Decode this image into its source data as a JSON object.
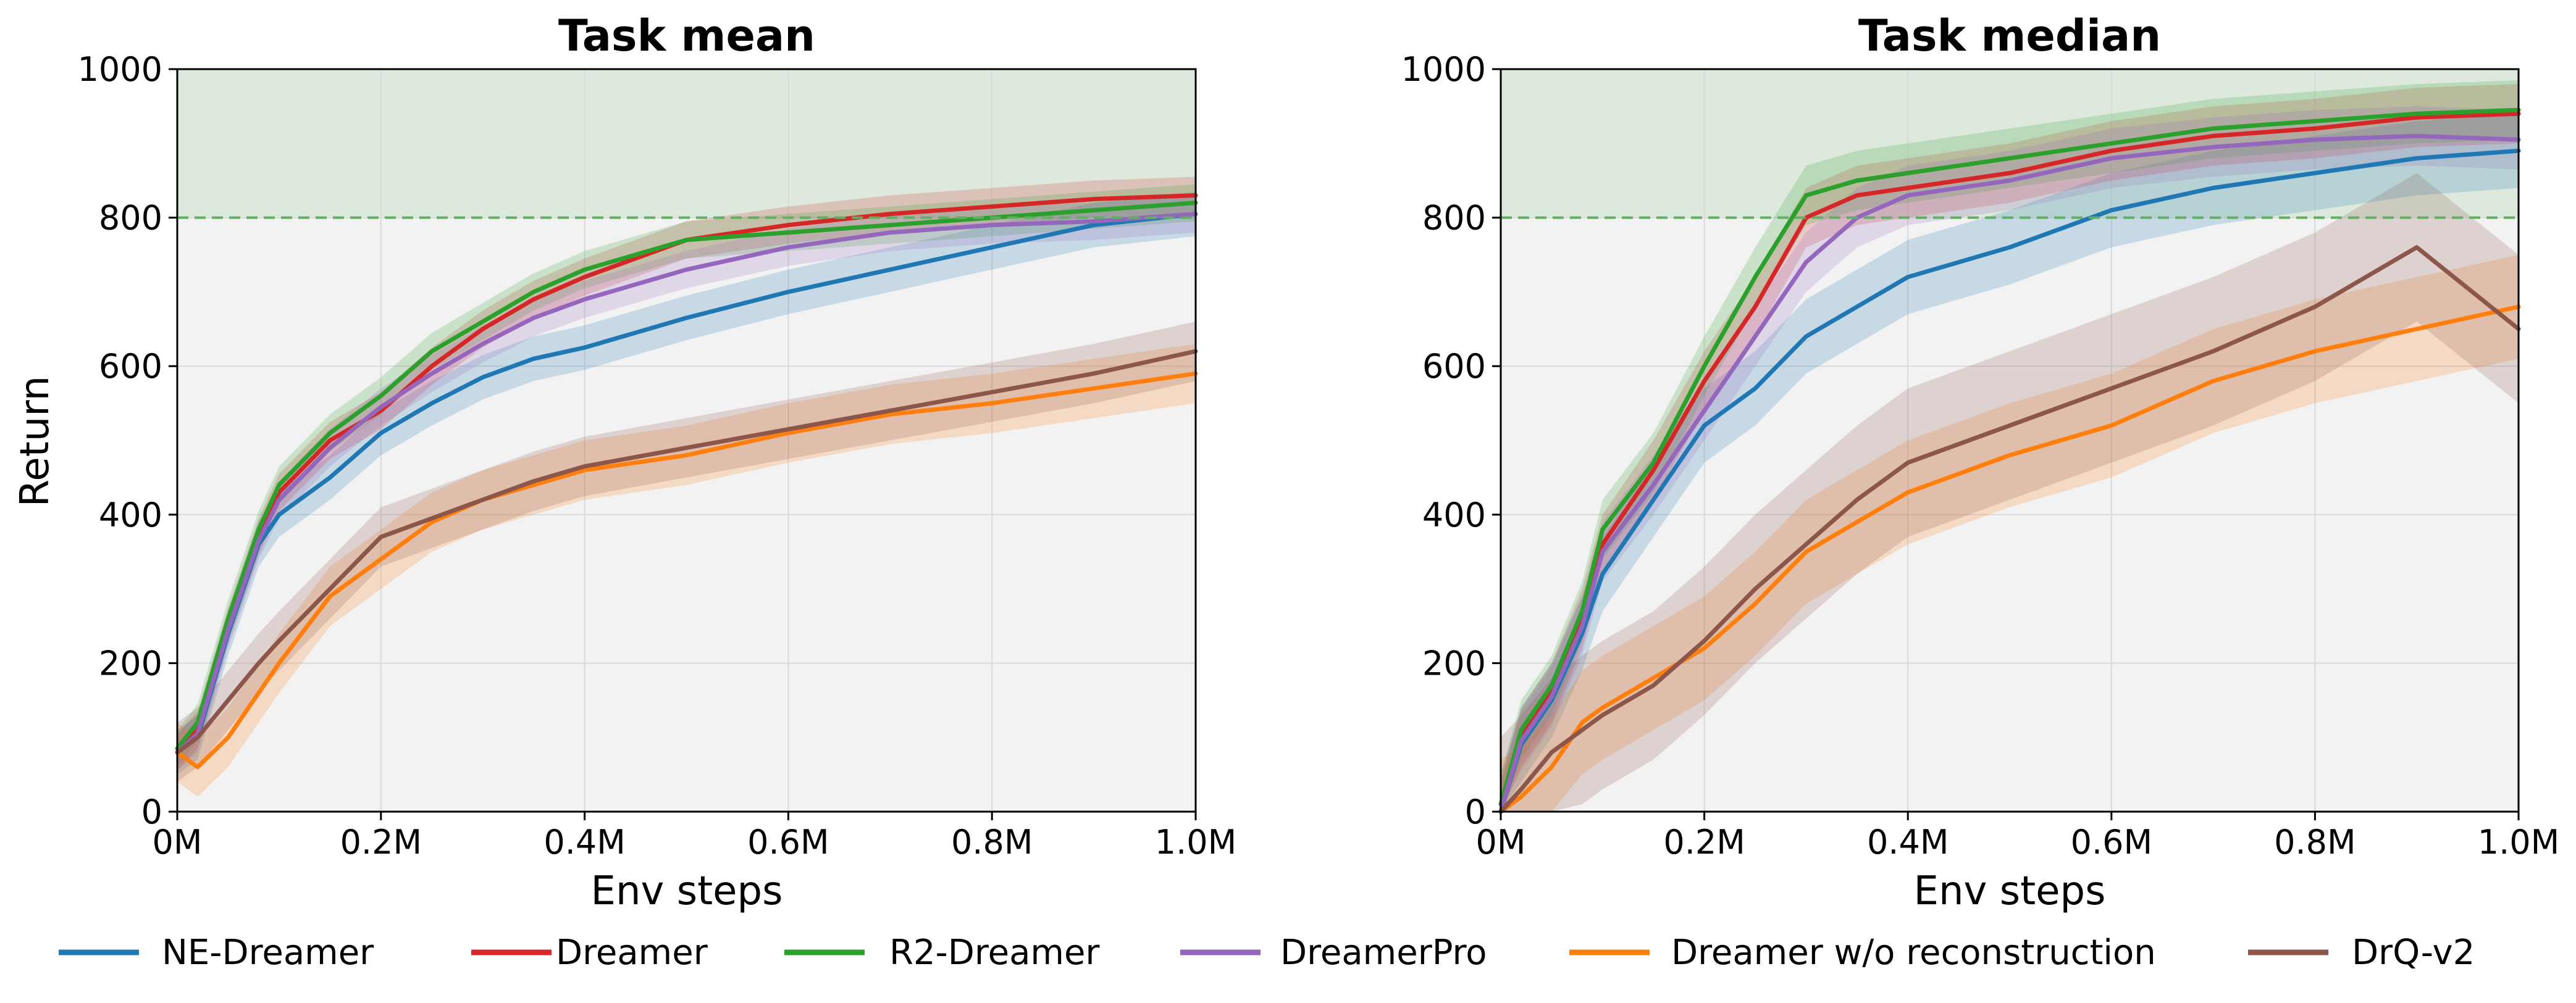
{
  "chart_data": [
    {
      "type": "line",
      "title": "Task mean",
      "xlabel": "Env steps",
      "ylabel": "Return",
      "xlim": [
        0,
        1.0
      ],
      "ylim": [
        0,
        1000
      ],
      "xticks": [
        "0M",
        "0.2M",
        "0.4M",
        "0.6M",
        "0.8M",
        "1.0M"
      ],
      "yticks": [
        "0",
        "200",
        "400",
        "600",
        "800",
        "1000"
      ],
      "grid": true,
      "reference_line": 800,
      "x": [
        0,
        0.02,
        0.05,
        0.08,
        0.1,
        0.15,
        0.2,
        0.25,
        0.3,
        0.35,
        0.4,
        0.5,
        0.6,
        0.7,
        0.8,
        0.9,
        1.0
      ],
      "series": [
        {
          "name": "NE-Dreamer",
          "values": [
            80,
            100,
            240,
            360,
            400,
            450,
            510,
            550,
            585,
            610,
            625,
            665,
            700,
            730,
            760,
            790,
            805
          ],
          "band": 30
        },
        {
          "name": "Dreamer",
          "values": [
            80,
            110,
            250,
            370,
            430,
            500,
            540,
            600,
            650,
            690,
            720,
            770,
            790,
            805,
            815,
            825,
            830
          ],
          "band": 25
        },
        {
          "name": "R2-Dreamer",
          "values": [
            85,
            120,
            260,
            380,
            440,
            510,
            560,
            620,
            660,
            700,
            730,
            770,
            780,
            790,
            800,
            810,
            820
          ],
          "band": 25
        },
        {
          "name": "DreamerPro",
          "values": [
            80,
            105,
            245,
            365,
            420,
            490,
            545,
            590,
            630,
            665,
            690,
            730,
            760,
            780,
            790,
            795,
            805
          ],
          "band": 25
        },
        {
          "name": "Dreamer w/o reconstruction",
          "values": [
            80,
            60,
            100,
            160,
            200,
            290,
            340,
            390,
            420,
            440,
            460,
            480,
            510,
            535,
            550,
            570,
            590
          ],
          "band": 40
        },
        {
          "name": "DrQ-v2",
          "values": [
            80,
            100,
            150,
            200,
            230,
            300,
            370,
            395,
            420,
            445,
            465,
            490,
            515,
            540,
            565,
            590,
            620
          ],
          "band": 40
        }
      ]
    },
    {
      "type": "line",
      "title": "Task median",
      "xlabel": "Env steps",
      "ylabel": "",
      "xlim": [
        0,
        1.0
      ],
      "ylim": [
        0,
        1000
      ],
      "xticks": [
        "0M",
        "0.2M",
        "0.4M",
        "0.6M",
        "0.8M",
        "1.0M"
      ],
      "yticks": [
        "0",
        "200",
        "400",
        "600",
        "800",
        "1000"
      ],
      "grid": true,
      "reference_line": 800,
      "x": [
        0,
        0.02,
        0.05,
        0.08,
        0.1,
        0.15,
        0.2,
        0.25,
        0.3,
        0.35,
        0.4,
        0.5,
        0.6,
        0.7,
        0.8,
        0.9,
        1.0
      ],
      "series": [
        {
          "name": "NE-Dreamer",
          "values": [
            0,
            90,
            150,
            240,
            320,
            420,
            520,
            570,
            640,
            680,
            720,
            760,
            810,
            840,
            860,
            880,
            890
          ],
          "band": 50
        },
        {
          "name": "Dreamer",
          "values": [
            0,
            100,
            160,
            260,
            360,
            460,
            580,
            680,
            800,
            830,
            840,
            860,
            890,
            910,
            920,
            935,
            940
          ],
          "band": 40
        },
        {
          "name": "R2-Dreamer",
          "values": [
            10,
            110,
            170,
            270,
            380,
            470,
            600,
            720,
            830,
            850,
            860,
            880,
            900,
            920,
            930,
            940,
            945
          ],
          "band": 40
        },
        {
          "name": "DreamerPro",
          "values": [
            0,
            95,
            155,
            250,
            350,
            440,
            540,
            640,
            740,
            800,
            830,
            850,
            880,
            895,
            905,
            910,
            905
          ],
          "band": 40
        },
        {
          "name": "Dreamer w/o reconstruction",
          "values": [
            0,
            20,
            60,
            120,
            140,
            180,
            220,
            280,
            350,
            390,
            430,
            480,
            520,
            580,
            620,
            650,
            680
          ],
          "band": 70
        },
        {
          "name": "DrQ-v2",
          "values": [
            0,
            30,
            80,
            110,
            130,
            170,
            230,
            300,
            360,
            420,
            470,
            520,
            570,
            620,
            680,
            760,
            650
          ],
          "band": 100
        }
      ]
    }
  ],
  "legend": {
    "placement": "bottom",
    "entries": [
      {
        "name": "NE-Dreamer",
        "color": "#1f77b4"
      },
      {
        "name": "Dreamer",
        "color": "#d62728"
      },
      {
        "name": "R2-Dreamer",
        "color": "#2ca02c"
      },
      {
        "name": "DreamerPro",
        "color": "#9467bd"
      },
      {
        "name": "Dreamer w/o reconstruction",
        "color": "#ff7f0e"
      },
      {
        "name": "DrQ-v2",
        "color": "#8c564b"
      }
    ]
  },
  "colors": {
    "plot_background": "#f2f2f2",
    "target_region": "#dde9dd",
    "reference_line": "#5fb05f",
    "grid": "#d9d9d9"
  }
}
